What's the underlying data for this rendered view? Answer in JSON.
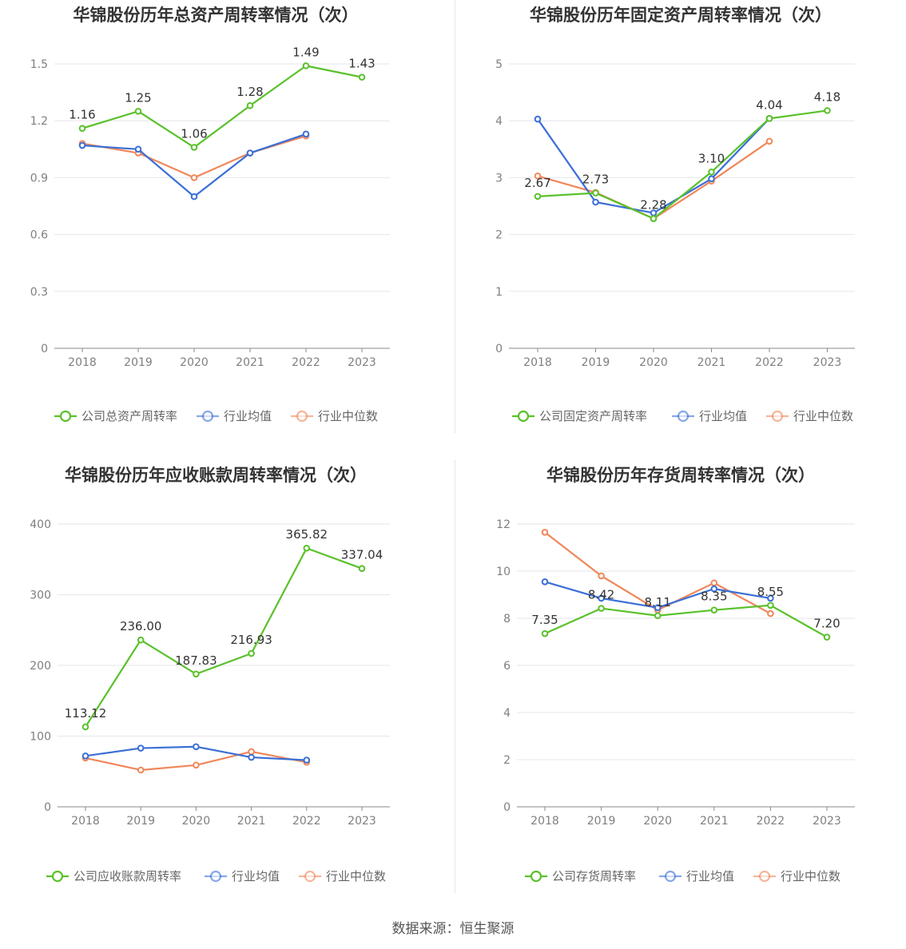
{
  "colors": {
    "company": "#5ac12b",
    "average": "#3b6fd6",
    "median": "#f0875a"
  },
  "source": "数据来源：恒生聚源",
  "chart_data": [
    {
      "type": "line",
      "title": "华锦股份历年总资产周转率情况（次）",
      "categories": [
        "2018",
        "2019",
        "2020",
        "2021",
        "2022",
        "2023"
      ],
      "ylim": [
        0,
        1.5
      ],
      "yticks": [
        "0",
        "0.3",
        "0.6",
        "0.9",
        "1.2",
        "1.5"
      ],
      "series": [
        {
          "name": "公司总资产周转率",
          "key": "company",
          "values": [
            1.16,
            1.25,
            1.06,
            1.28,
            1.49,
            1.43
          ],
          "labels": [
            "1.16",
            "1.25",
            "1.06",
            "1.28",
            "1.49",
            "1.43"
          ]
        },
        {
          "name": "行业均值",
          "key": "average",
          "values": [
            1.07,
            1.05,
            0.8,
            1.03,
            1.13,
            null
          ]
        },
        {
          "name": "行业中位数",
          "key": "median",
          "values": [
            1.08,
            1.03,
            0.9,
            1.03,
            1.12,
            null
          ]
        }
      ]
    },
    {
      "type": "line",
      "title": "华锦股份历年固定资产周转率情况（次）",
      "categories": [
        "2018",
        "2019",
        "2020",
        "2021",
        "2022",
        "2023"
      ],
      "ylim": [
        0,
        5
      ],
      "yticks": [
        "0",
        "1",
        "2",
        "3",
        "4",
        "5"
      ],
      "series": [
        {
          "name": "公司固定资产周转率",
          "key": "company",
          "values": [
            2.67,
            2.73,
            2.28,
            3.1,
            4.04,
            4.18
          ],
          "labels": [
            "2.67",
            "2.73",
            "2.28",
            "3.10",
            "4.04",
            "4.18"
          ]
        },
        {
          "name": "行业均值",
          "key": "average",
          "values": [
            4.03,
            2.57,
            2.38,
            2.98,
            4.04,
            null
          ]
        },
        {
          "name": "行业中位数",
          "key": "median",
          "values": [
            3.03,
            2.74,
            2.28,
            2.94,
            3.64,
            null
          ]
        }
      ]
    },
    {
      "type": "line",
      "title": "华锦股份历年应收账款周转率情况（次）",
      "categories": [
        "2018",
        "2019",
        "2020",
        "2021",
        "2022",
        "2023"
      ],
      "ylim": [
        0,
        400
      ],
      "yticks": [
        "0",
        "100",
        "200",
        "300",
        "400"
      ],
      "series": [
        {
          "name": "公司应收账款周转率",
          "key": "company",
          "values": [
            113.12,
            236.0,
            187.83,
            216.93,
            365.82,
            337.04
          ],
          "labels": [
            "113.12",
            "236.00",
            "187.83",
            "216.93",
            "365.82",
            "337.04"
          ]
        },
        {
          "name": "行业均值",
          "key": "average",
          "values": [
            72,
            83,
            85,
            70,
            66,
            null
          ]
        },
        {
          "name": "行业中位数",
          "key": "median",
          "values": [
            69,
            52,
            59,
            78,
            63,
            null
          ]
        }
      ]
    },
    {
      "type": "line",
      "title": "华锦股份历年存货周转率情况（次）",
      "categories": [
        "2018",
        "2019",
        "2020",
        "2021",
        "2022",
        "2023"
      ],
      "ylim": [
        0,
        12
      ],
      "yticks": [
        "0",
        "2",
        "4",
        "6",
        "8",
        "10",
        "12"
      ],
      "series": [
        {
          "name": "公司存货周转率",
          "key": "company",
          "values": [
            7.35,
            8.42,
            8.11,
            8.35,
            8.55,
            7.2
          ],
          "labels": [
            "7.35",
            "8.42",
            "8.11",
            "8.35",
            "8.55",
            "7.20"
          ]
        },
        {
          "name": "行业均值",
          "key": "average",
          "values": [
            9.55,
            8.85,
            8.45,
            9.25,
            8.85,
            null
          ]
        },
        {
          "name": "行业中位数",
          "key": "median",
          "values": [
            11.65,
            9.8,
            8.35,
            9.5,
            8.2,
            null
          ]
        }
      ]
    }
  ]
}
